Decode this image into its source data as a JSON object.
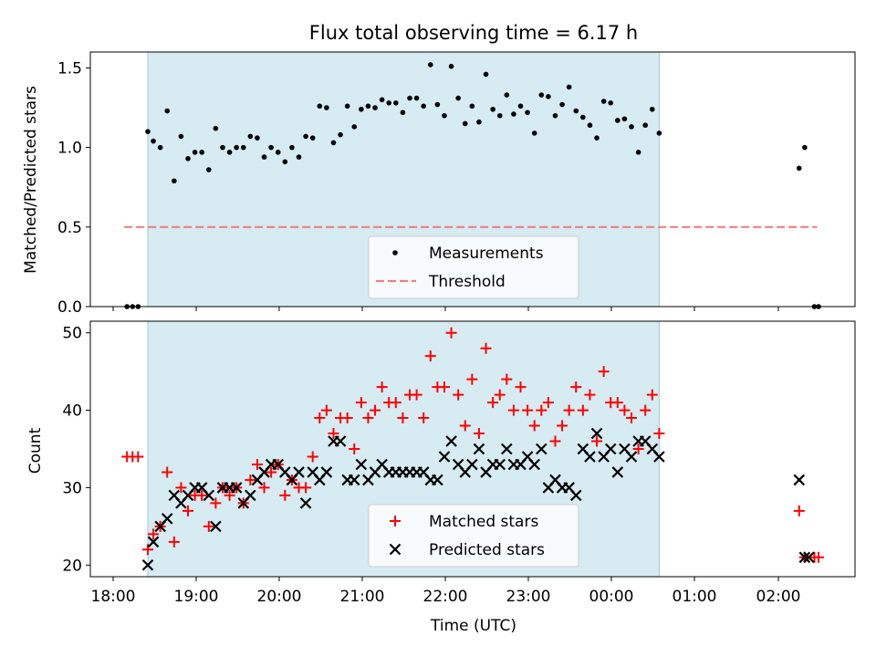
{
  "chart_data": [
    {
      "type": "scatter",
      "title": "Flux total observing time = 6.17 h",
      "xlabel": "",
      "ylabel": "Matched/Predicted stars",
      "ylim": [
        0,
        1.6
      ],
      "yticks": [
        "0.0",
        "0.5",
        "1.0",
        "1.5"
      ],
      "xlim": [
        "18:00",
        "02:55"
      ],
      "shaded_interval": [
        "18:25",
        "00:34"
      ],
      "threshold": {
        "y": 0.5,
        "x": [
          "18:08",
          "02:28"
        ],
        "color": "#f08080"
      },
      "legend": {
        "placement": "lower-center",
        "entries": [
          "Measurements",
          "Threshold"
        ]
      },
      "series": [
        {
          "name": "Measurements",
          "color": "#000000",
          "marker": "dot",
          "x": [
            "18:10",
            "18:14",
            "18:18",
            "18:25",
            "18:29",
            "18:34",
            "18:39",
            "18:44",
            "18:49",
            "18:54",
            "18:59",
            "19:04",
            "19:09",
            "19:14",
            "19:19",
            "19:24",
            "19:29",
            "19:34",
            "19:39",
            "19:44",
            "19:49",
            "19:54",
            "19:59",
            "20:04",
            "20:09",
            "20:14",
            "20:19",
            "20:24",
            "20:29",
            "20:34",
            "20:39",
            "20:44",
            "20:49",
            "20:54",
            "20:59",
            "21:04",
            "21:09",
            "21:14",
            "21:19",
            "21:24",
            "21:29",
            "21:34",
            "21:39",
            "21:44",
            "21:49",
            "21:54",
            "21:59",
            "22:04",
            "22:09",
            "22:14",
            "22:19",
            "22:24",
            "22:29",
            "22:34",
            "22:39",
            "22:44",
            "22:49",
            "22:54",
            "22:59",
            "23:04",
            "23:09",
            "23:14",
            "23:19",
            "23:24",
            "23:29",
            "23:34",
            "23:39",
            "23:44",
            "23:49",
            "23:54",
            "23:59",
            "00:04",
            "00:09",
            "00:14",
            "00:19",
            "00:24",
            "00:29",
            "00:34",
            "02:15",
            "02:19",
            "02:26",
            "02:29"
          ],
          "y": [
            0.0,
            0.0,
            0.0,
            1.1,
            1.04,
            1.0,
            1.23,
            0.79,
            1.07,
            0.93,
            0.97,
            0.97,
            0.86,
            1.12,
            1.0,
            0.97,
            1.0,
            1.0,
            1.07,
            1.06,
            0.94,
            1.0,
            0.97,
            0.91,
            1.0,
            0.94,
            1.07,
            1.06,
            1.26,
            1.25,
            1.03,
            1.08,
            1.26,
            1.13,
            1.24,
            1.26,
            1.25,
            1.3,
            1.28,
            1.28,
            1.22,
            1.31,
            1.31,
            1.26,
            1.52,
            1.27,
            1.2,
            1.51,
            1.31,
            1.15,
            1.26,
            1.16,
            1.46,
            1.24,
            1.2,
            1.33,
            1.21,
            1.26,
            1.22,
            1.09,
            1.33,
            1.32,
            1.2,
            1.27,
            1.38,
            1.23,
            1.19,
            1.14,
            1.06,
            1.29,
            1.28,
            1.17,
            1.18,
            1.13,
            0.97,
            1.14,
            1.24,
            1.09,
            0.87,
            1.0,
            0.0,
            0.0
          ]
        }
      ]
    },
    {
      "type": "scatter",
      "title": "",
      "xlabel": "Time (UTC)",
      "ylabel": "Count",
      "ylim": [
        18.5,
        51.5
      ],
      "yticks": [
        "20",
        "30",
        "40",
        "50"
      ],
      "xlim": [
        "18:00",
        "02:55"
      ],
      "xticks": [
        "18:00",
        "19:00",
        "20:00",
        "21:00",
        "22:00",
        "23:00",
        "00:00",
        "01:00",
        "02:00"
      ],
      "shaded_interval": [
        "18:25",
        "00:34"
      ],
      "legend": {
        "placement": "lower-center",
        "entries": [
          "Matched stars",
          "Predicted stars"
        ]
      },
      "series": [
        {
          "name": "Matched stars",
          "color": "#ff0000",
          "marker": "plus",
          "x": [
            "18:10",
            "18:14",
            "18:18",
            "18:25",
            "18:29",
            "18:34",
            "18:39",
            "18:44",
            "18:49",
            "18:54",
            "18:59",
            "19:04",
            "19:09",
            "19:14",
            "19:19",
            "19:24",
            "19:29",
            "19:34",
            "19:39",
            "19:44",
            "19:49",
            "19:54",
            "19:59",
            "20:04",
            "20:09",
            "20:14",
            "20:19",
            "20:24",
            "20:29",
            "20:34",
            "20:39",
            "20:44",
            "20:49",
            "20:54",
            "20:59",
            "21:04",
            "21:09",
            "21:14",
            "21:19",
            "21:24",
            "21:29",
            "21:34",
            "21:39",
            "21:44",
            "21:49",
            "21:54",
            "21:59",
            "22:04",
            "22:09",
            "22:14",
            "22:19",
            "22:24",
            "22:29",
            "22:34",
            "22:39",
            "22:44",
            "22:49",
            "22:54",
            "22:59",
            "23:04",
            "23:09",
            "23:14",
            "23:19",
            "23:24",
            "23:29",
            "23:34",
            "23:39",
            "23:44",
            "23:49",
            "23:54",
            "23:59",
            "00:04",
            "00:09",
            "00:14",
            "00:19",
            "00:24",
            "00:29",
            "00:34",
            "02:15",
            "02:19",
            "02:26",
            "02:29"
          ],
          "y": [
            34,
            34,
            34,
            22,
            24,
            25,
            32,
            23,
            30,
            27,
            29,
            29,
            25,
            28,
            30,
            29,
            30,
            28,
            31,
            33,
            30,
            32,
            33,
            29,
            31,
            30,
            30,
            34,
            39,
            40,
            37,
            39,
            39,
            35,
            41,
            39,
            40,
            43,
            41,
            41,
            39,
            42,
            42,
            39,
            47,
            43,
            43,
            50,
            42,
            38,
            44,
            37,
            48,
            41,
            42,
            44,
            40,
            43,
            40,
            38,
            40,
            41,
            36,
            38,
            40,
            43,
            40,
            42,
            36,
            45,
            41,
            41,
            40,
            39,
            35,
            40,
            42,
            37,
            27,
            21,
            21,
            21
          ]
        },
        {
          "name": "Predicted stars",
          "color": "#000000",
          "marker": "x",
          "x": [
            "18:25",
            "18:29",
            "18:34",
            "18:39",
            "18:44",
            "18:49",
            "18:54",
            "18:59",
            "19:04",
            "19:09",
            "19:14",
            "19:19",
            "19:24",
            "19:29",
            "19:34",
            "19:39",
            "19:44",
            "19:49",
            "19:54",
            "19:59",
            "20:04",
            "20:09",
            "20:14",
            "20:19",
            "20:24",
            "20:29",
            "20:34",
            "20:39",
            "20:44",
            "20:49",
            "20:54",
            "20:59",
            "21:04",
            "21:09",
            "21:14",
            "21:19",
            "21:24",
            "21:29",
            "21:34",
            "21:39",
            "21:44",
            "21:49",
            "21:54",
            "21:59",
            "22:04",
            "22:09",
            "22:14",
            "22:19",
            "22:24",
            "22:29",
            "22:34",
            "22:39",
            "22:44",
            "22:49",
            "22:54",
            "22:59",
            "23:04",
            "23:09",
            "23:14",
            "23:19",
            "23:24",
            "23:29",
            "23:34",
            "23:39",
            "23:44",
            "23:49",
            "23:54",
            "23:59",
            "00:04",
            "00:09",
            "00:14",
            "00:19",
            "00:24",
            "00:29",
            "00:34",
            "02:15",
            "02:19",
            "02:22"
          ],
          "y": [
            20,
            23,
            25,
            26,
            29,
            28,
            29,
            30,
            30,
            29,
            25,
            30,
            30,
            30,
            28,
            29,
            31,
            32,
            33,
            33,
            32,
            31,
            32,
            28,
            32,
            31,
            32,
            36,
            36,
            31,
            31,
            33,
            31,
            32,
            33,
            32,
            32,
            32,
            32,
            32,
            32,
            31,
            31,
            34,
            36,
            33,
            32,
            33,
            35,
            32,
            33,
            33,
            35,
            33,
            33,
            34,
            33,
            35,
            30,
            31,
            30,
            30,
            29,
            35,
            34,
            37,
            34,
            35,
            32,
            35,
            34,
            36,
            36,
            35,
            34,
            31,
            21,
            21
          ]
        }
      ]
    }
  ]
}
